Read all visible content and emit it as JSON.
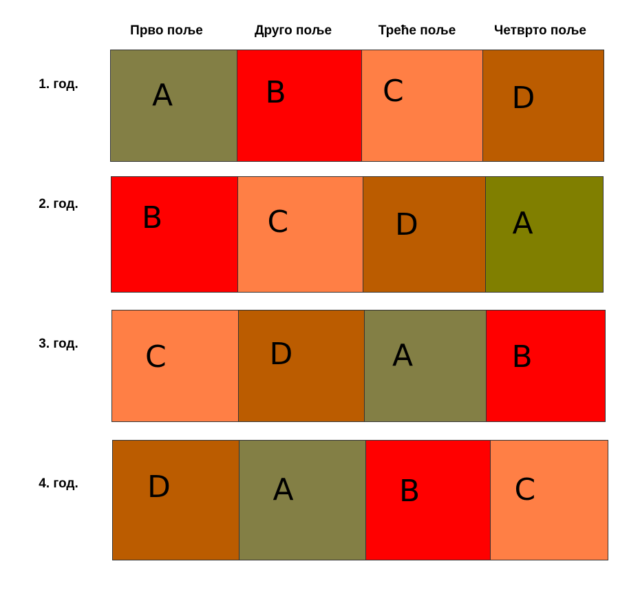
{
  "columns": [
    "Прво поље",
    "Друго поље",
    "Треће поље",
    "Четврто поље"
  ],
  "rows": [
    {
      "label": "1. год.",
      "cells": [
        "A",
        "B",
        "C",
        "D"
      ]
    },
    {
      "label": "2. год.",
      "cells": [
        "B",
        "C",
        "D",
        "A"
      ]
    },
    {
      "label": "3. год.",
      "cells": [
        "C",
        "D",
        "A",
        "B"
      ]
    },
    {
      "label": "4. год.",
      "cells": [
        "D",
        "A",
        "B",
        "C"
      ]
    }
  ],
  "colors": {
    "A": "#837f45",
    "A_alt": "#807f00",
    "B": "#ff0000",
    "C": "#ff7f45",
    "D": "#bb5c00"
  }
}
